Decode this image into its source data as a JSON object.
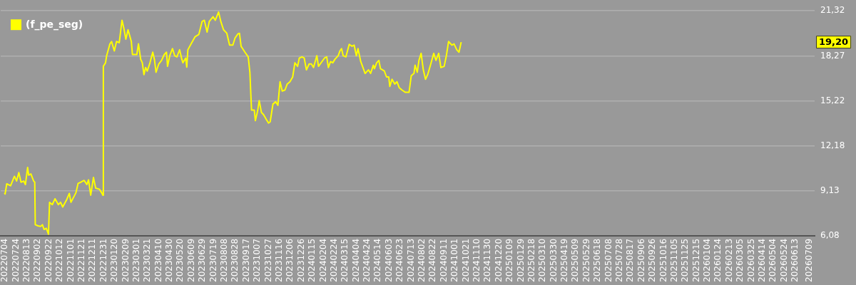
{
  "chart_data": {
    "type": "line",
    "legend": "top left",
    "grid": "y",
    "xlim": [
      "2022-06-26",
      "2026-07-18"
    ],
    "xticks": [
      {
        "value": "2022-07-04",
        "label": "20220704"
      },
      {
        "value": "2022-07-24",
        "label": "20220724"
      },
      {
        "value": "2022-08-13",
        "label": "20220813"
      },
      {
        "value": "2022-09-02",
        "label": "20220902"
      },
      {
        "value": "2022-09-22",
        "label": "20220922"
      },
      {
        "value": "2022-10-12",
        "label": "20221012"
      },
      {
        "value": "2022-11-01",
        "label": "20221101"
      },
      {
        "value": "2022-11-21",
        "label": "20221121"
      },
      {
        "value": "2022-12-11",
        "label": "20221211"
      },
      {
        "value": "2022-12-31",
        "label": "20221231"
      },
      {
        "value": "2023-01-20",
        "label": "20230120"
      },
      {
        "value": "2023-02-09",
        "label": "20230209"
      },
      {
        "value": "2023-03-01",
        "label": "20230301"
      },
      {
        "value": "2023-03-21",
        "label": "20230321"
      },
      {
        "value": "2023-04-10",
        "label": "20230410"
      },
      {
        "value": "2023-04-30",
        "label": "20230430"
      },
      {
        "value": "2023-05-20",
        "label": "20230520"
      },
      {
        "value": "2023-06-09",
        "label": "20230609"
      },
      {
        "value": "2023-06-29",
        "label": "20230629"
      },
      {
        "value": "2023-07-19",
        "label": "20230719"
      },
      {
        "value": "2023-08-08",
        "label": "20230808"
      },
      {
        "value": "2023-08-28",
        "label": "20230828"
      },
      {
        "value": "2023-09-17",
        "label": "20230917"
      },
      {
        "value": "2023-10-07",
        "label": "20231007"
      },
      {
        "value": "2023-10-27",
        "label": "20231027"
      },
      {
        "value": "2023-11-16",
        "label": "20231116"
      },
      {
        "value": "2023-12-06",
        "label": "20231206"
      },
      {
        "value": "2023-12-26",
        "label": "20231226"
      },
      {
        "value": "2024-01-15",
        "label": "20240115"
      },
      {
        "value": "2024-02-04",
        "label": "20240204"
      },
      {
        "value": "2024-02-24",
        "label": "20240224"
      },
      {
        "value": "2024-03-15",
        "label": "20240315"
      },
      {
        "value": "2024-04-04",
        "label": "20240404"
      },
      {
        "value": "2024-04-24",
        "label": "20240424"
      },
      {
        "value": "2024-05-14",
        "label": "20240514"
      },
      {
        "value": "2024-06-03",
        "label": "20240603"
      },
      {
        "value": "2024-06-23",
        "label": "20240623"
      },
      {
        "value": "2024-07-13",
        "label": "20240713"
      },
      {
        "value": "2024-08-02",
        "label": "20240802"
      },
      {
        "value": "2024-08-22",
        "label": "20240822"
      },
      {
        "value": "2024-09-11",
        "label": "20240911"
      },
      {
        "value": "2024-10-01",
        "label": "20241001"
      },
      {
        "value": "2024-10-21",
        "label": "20241021"
      },
      {
        "value": "2024-11-10",
        "label": "20241110"
      },
      {
        "value": "2024-11-30",
        "label": "20241130"
      },
      {
        "value": "2024-12-20",
        "label": "20241220"
      },
      {
        "value": "2025-01-09",
        "label": "20250109"
      },
      {
        "value": "2025-01-29",
        "label": "20250129"
      },
      {
        "value": "2025-02-18",
        "label": "20250218"
      },
      {
        "value": "2025-03-10",
        "label": "20250310"
      },
      {
        "value": "2025-03-30",
        "label": "20250330"
      },
      {
        "value": "2025-04-19",
        "label": "20250419"
      },
      {
        "value": "2025-05-09",
        "label": "20250509"
      },
      {
        "value": "2025-05-29",
        "label": "20250529"
      },
      {
        "value": "2025-06-18",
        "label": "20250618"
      },
      {
        "value": "2025-07-08",
        "label": "20250708"
      },
      {
        "value": "2025-07-28",
        "label": "20250728"
      },
      {
        "value": "2025-08-17",
        "label": "20250817"
      },
      {
        "value": "2025-09-06",
        "label": "20250906"
      },
      {
        "value": "2025-09-26",
        "label": "20250926"
      },
      {
        "value": "2025-10-16",
        "label": "20251016"
      },
      {
        "value": "2025-11-05",
        "label": "20251105"
      },
      {
        "value": "2025-11-25",
        "label": "20251125"
      },
      {
        "value": "2025-12-15",
        "label": "20251215"
      },
      {
        "value": "2026-01-04",
        "label": "20260104"
      },
      {
        "value": "2026-01-24",
        "label": "20260124"
      },
      {
        "value": "2026-02-13",
        "label": "20260213"
      },
      {
        "value": "2026-03-05",
        "label": "20260305"
      },
      {
        "value": "2026-03-25",
        "label": "20260325"
      },
      {
        "value": "2026-04-14",
        "label": "20260414"
      },
      {
        "value": "2026-05-04",
        "label": "20260504"
      },
      {
        "value": "2026-05-24",
        "label": "20260524"
      },
      {
        "value": "2026-06-13",
        "label": "20260613"
      },
      {
        "value": "2026-07-09",
        "label": "20260709"
      }
    ],
    "ylim": [
      6.08,
      21.32
    ],
    "yticks": [
      {
        "value": 6.08,
        "label": "6,08"
      },
      {
        "value": 9.13,
        "label": "9,13"
      },
      {
        "value": 12.18,
        "label": "12,18"
      },
      {
        "value": 15.22,
        "label": "15,22"
      },
      {
        "value": 18.27,
        "label": "18,27"
      },
      {
        "value": 21.32,
        "label": "21,32"
      }
    ],
    "annotations": [
      "19,20"
    ],
    "series": [
      {
        "name": "(f_pe_seg)",
        "color": "#ffff00",
        "x": [
          "2022-07-03",
          "2022-07-04",
          "2022-07-07",
          "2022-07-14",
          "2022-07-21",
          "2022-07-25",
          "2022-07-29",
          "2022-08-02",
          "2022-08-07",
          "2022-08-10",
          "2022-08-14",
          "2022-08-16",
          "2022-08-20",
          "2022-08-25",
          "2022-08-27",
          "2022-08-28",
          "2022-09-02",
          "2022-09-07",
          "2022-09-10",
          "2022-09-13",
          "2022-09-17",
          "2022-09-21",
          "2022-09-23",
          "2022-09-28",
          "2022-10-03",
          "2022-10-09",
          "2022-10-13",
          "2022-10-17",
          "2022-10-24",
          "2022-10-29",
          "2022-11-01",
          "2022-11-10",
          "2022-11-14",
          "2022-11-19",
          "2022-11-25",
          "2022-11-30",
          "2022-12-03",
          "2022-12-07",
          "2022-12-12",
          "2022-12-16",
          "2022-12-23",
          "2022-12-27",
          "2022-12-29",
          "2022-12-30",
          "2023-01-03",
          "2023-01-05",
          "2023-01-11",
          "2023-01-14",
          "2023-01-19",
          "2023-01-23",
          "2023-01-28",
          "2023-02-02",
          "2023-02-05",
          "2023-02-09",
          "2023-02-13",
          "2023-02-19",
          "2023-02-21",
          "2023-03-01",
          "2023-03-04",
          "2023-03-08",
          "2023-03-11",
          "2023-03-14",
          "2023-03-17",
          "2023-03-20",
          "2023-03-25",
          "2023-03-30",
          "2023-04-02",
          "2023-04-05",
          "2023-04-10",
          "2023-04-15",
          "2023-04-20",
          "2023-04-24",
          "2023-04-26",
          "2023-04-30",
          "2023-05-05",
          "2023-05-09",
          "2023-05-13",
          "2023-05-18",
          "2023-05-22",
          "2023-05-24",
          "2023-05-29",
          "2023-05-31",
          "2023-06-02",
          "2023-06-09",
          "2023-06-15",
          "2023-06-22",
          "2023-06-28",
          "2023-07-02",
          "2023-07-07",
          "2023-07-11",
          "2023-07-18",
          "2023-07-22",
          "2023-07-28",
          "2023-08-01",
          "2023-08-06",
          "2023-08-12",
          "2023-08-17",
          "2023-08-23",
          "2023-08-27",
          "2023-09-01",
          "2023-09-04",
          "2023-09-07",
          "2023-09-14",
          "2023-09-20",
          "2023-09-23",
          "2023-09-26",
          "2023-10-01",
          "2023-10-03",
          "2023-10-07",
          "2023-10-10",
          "2023-10-14",
          "2023-10-18",
          "2023-10-23",
          "2023-10-27",
          "2023-10-30",
          "2023-11-04",
          "2023-11-09",
          "2023-11-13",
          "2023-11-17",
          "2023-11-21",
          "2023-11-26",
          "2023-11-30",
          "2023-12-05",
          "2023-12-10",
          "2023-12-14",
          "2023-12-19",
          "2023-12-22",
          "2023-12-27",
          "2023-12-31",
          "2024-01-04",
          "2024-01-09",
          "2024-01-13",
          "2024-01-17",
          "2024-01-23",
          "2024-01-26",
          "2024-02-06",
          "2024-02-10",
          "2024-02-13",
          "2024-02-17",
          "2024-02-21",
          "2024-02-25",
          "2024-03-02",
          "2024-03-05",
          "2024-03-08",
          "2024-03-11",
          "2024-03-16",
          "2024-03-22",
          "2024-03-27",
          "2024-03-31",
          "2024-04-04",
          "2024-04-07",
          "2024-04-12",
          "2024-04-20",
          "2024-04-26",
          "2024-04-30",
          "2024-05-05",
          "2024-05-07",
          "2024-05-11",
          "2024-05-15",
          "2024-05-18",
          "2024-05-25",
          "2024-05-29",
          "2024-06-02",
          "2024-06-04",
          "2024-06-08",
          "2024-06-13",
          "2024-06-17",
          "2024-06-21",
          "2024-06-26",
          "2024-07-02",
          "2024-07-09",
          "2024-07-13",
          "2024-07-18",
          "2024-07-20",
          "2024-07-24",
          "2024-07-27",
          "2024-07-31",
          "2024-08-04",
          "2024-08-08",
          "2024-08-12",
          "2024-08-17",
          "2024-08-23",
          "2024-08-27",
          "2024-09-01",
          "2024-09-05",
          "2024-09-11",
          "2024-09-15",
          "2024-09-19",
          "2024-09-25",
          "2024-09-29",
          "2024-10-04",
          "2024-10-08",
          "2024-10-12"
        ],
        "values": [
          8.99,
          8.91,
          9.6,
          9.47,
          10.11,
          9.79,
          10.36,
          9.71,
          9.79,
          9.55,
          10.71,
          10.19,
          10.27,
          9.79,
          9.71,
          6.83,
          6.75,
          6.72,
          6.83,
          6.51,
          6.59,
          6.19,
          8.35,
          8.19,
          8.59,
          8.19,
          8.35,
          8.03,
          8.51,
          8.95,
          8.35,
          8.99,
          9.63,
          9.71,
          9.83,
          9.55,
          9.87,
          8.83,
          10.03,
          9.31,
          9.23,
          8.99,
          8.83,
          17.56,
          17.8,
          18.28,
          19.08,
          19.24,
          18.6,
          19.24,
          19.16,
          20.68,
          20.2,
          19.4,
          20.04,
          19.24,
          18.36,
          18.36,
          19.08,
          18.04,
          17.8,
          17.0,
          17.48,
          17.24,
          17.8,
          18.52,
          18.04,
          17.16,
          17.72,
          17.96,
          18.36,
          18.52,
          17.56,
          18.28,
          18.76,
          18.28,
          18.2,
          18.68,
          18.04,
          17.8,
          18.12,
          17.51,
          18.68,
          19.16,
          19.56,
          19.72,
          20.6,
          20.68,
          19.88,
          20.6,
          20.92,
          20.68,
          21.24,
          20.6,
          20.04,
          19.8,
          19.0,
          19.0,
          19.48,
          19.75,
          19.8,
          18.92,
          18.52,
          18.2,
          17.16,
          14.6,
          14.6,
          13.88,
          14.52,
          15.24,
          14.44,
          14.28,
          13.96,
          13.72,
          13.8,
          15.0,
          15.16,
          14.92,
          16.52,
          15.88,
          15.96,
          16.36,
          16.52,
          16.84,
          17.8,
          17.56,
          18.12,
          18.2,
          18.12,
          17.32,
          17.72,
          17.72,
          17.48,
          18.28,
          17.56,
          18.12,
          18.2,
          17.48,
          17.88,
          17.8,
          18.04,
          18.28,
          18.6,
          18.76,
          18.28,
          18.2,
          19.05,
          18.92,
          19.0,
          18.28,
          18.76,
          17.88,
          17.08,
          17.32,
          17.08,
          17.64,
          17.4,
          17.8,
          17.96,
          17.4,
          17.24,
          16.84,
          16.84,
          16.2,
          16.68,
          16.36,
          16.52,
          16.12,
          15.96,
          15.8,
          15.8,
          16.92,
          17.08,
          17.64,
          17.16,
          17.96,
          18.44,
          17.32,
          16.68,
          17.0,
          17.64,
          18.44,
          17.96,
          18.44,
          17.48,
          17.56,
          18.28,
          19.24,
          19.0,
          19.08,
          18.68,
          18.52,
          19.2
        ]
      }
    ]
  }
}
